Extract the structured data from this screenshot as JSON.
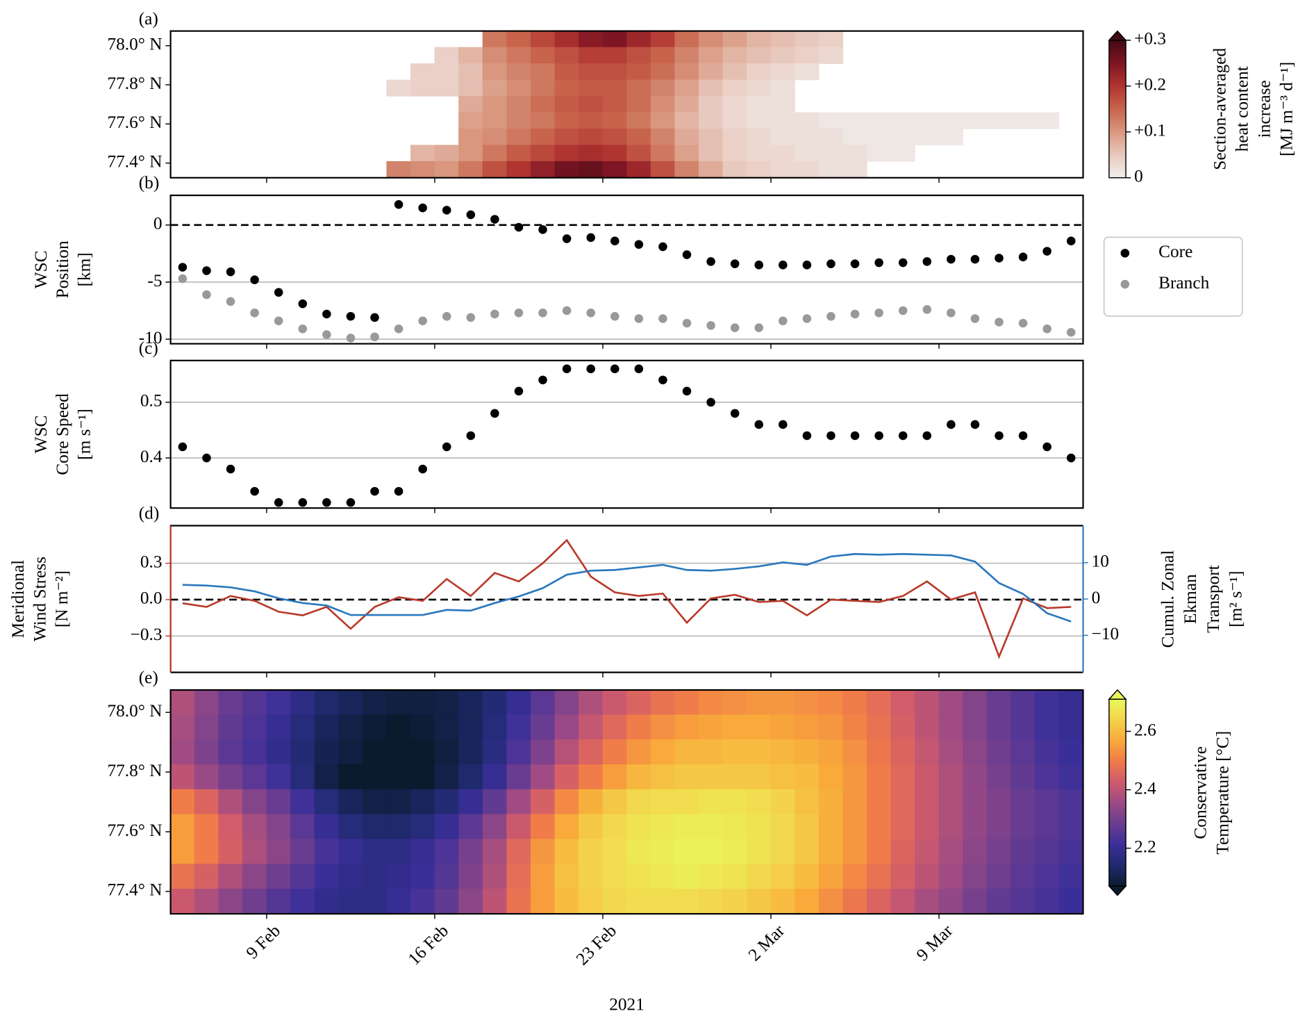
{
  "chart_data": [
    {
      "type": "heatmap",
      "label": "(a)",
      "ylim": [
        77.325,
        78.075
      ],
      "yticks": [
        {
          "value": 78.0,
          "label": "78.0° N"
        },
        {
          "value": 77.8,
          "label": "77.8° N"
        },
        {
          "value": 77.6,
          "label": "77.6° N"
        },
        {
          "value": 77.4,
          "label": "77.4° N"
        }
      ],
      "values": [
        [
          null,
          null,
          null,
          null,
          null,
          null,
          null,
          null,
          null,
          null,
          null,
          null,
          null,
          0.13,
          0.15,
          0.18,
          0.21,
          0.24,
          0.25,
          0.22,
          0.19,
          0.14,
          0.11,
          0.09,
          0.07,
          0.06,
          0.05,
          0.04,
          null,
          null,
          null,
          null,
          null,
          null,
          null,
          null,
          null,
          null
        ],
        [
          null,
          null,
          null,
          null,
          null,
          null,
          null,
          null,
          null,
          null,
          null,
          0.04,
          0.07,
          0.11,
          0.13,
          0.15,
          0.17,
          0.19,
          0.19,
          0.17,
          0.15,
          0.12,
          0.09,
          0.07,
          0.06,
          0.05,
          0.04,
          0.03,
          null,
          null,
          null,
          null,
          null,
          null,
          null,
          null,
          null,
          null
        ],
        [
          null,
          null,
          null,
          null,
          null,
          null,
          null,
          null,
          null,
          null,
          0.04,
          0.04,
          0.06,
          0.1,
          0.12,
          0.13,
          0.16,
          0.17,
          0.17,
          0.16,
          0.14,
          0.11,
          0.08,
          0.06,
          0.04,
          0.03,
          0.02,
          null,
          null,
          null,
          null,
          null,
          null,
          null,
          null,
          null,
          null,
          null
        ],
        [
          null,
          null,
          null,
          null,
          null,
          null,
          null,
          null,
          null,
          0.03,
          0.04,
          0.04,
          0.06,
          0.09,
          0.11,
          0.13,
          0.15,
          0.16,
          0.16,
          0.14,
          0.12,
          0.09,
          0.06,
          0.04,
          0.03,
          0.02,
          null,
          null,
          null,
          null,
          null,
          null,
          null,
          null,
          null,
          null,
          null,
          null
        ],
        [
          null,
          null,
          null,
          null,
          null,
          null,
          null,
          null,
          null,
          null,
          null,
          null,
          0.08,
          0.1,
          0.12,
          0.14,
          0.16,
          0.17,
          0.16,
          0.14,
          0.11,
          0.08,
          0.05,
          0.03,
          0.02,
          0.02,
          null,
          null,
          null,
          null,
          null,
          null,
          null,
          null,
          null,
          null,
          null,
          null
        ],
        [
          null,
          null,
          null,
          null,
          null,
          null,
          null,
          null,
          null,
          null,
          null,
          null,
          0.09,
          0.1,
          0.12,
          0.13,
          0.15,
          0.16,
          0.15,
          0.13,
          0.1,
          0.07,
          0.05,
          0.03,
          0.02,
          0.02,
          0.02,
          0.01,
          0.01,
          0.01,
          0.01,
          0.01,
          0.01,
          0.01,
          0.01,
          0.01,
          0.01,
          null
        ],
        [
          null,
          null,
          null,
          null,
          null,
          null,
          null,
          null,
          null,
          null,
          null,
          null,
          0.1,
          0.11,
          0.13,
          0.15,
          0.17,
          0.18,
          0.17,
          0.15,
          0.12,
          0.08,
          0.06,
          0.04,
          0.03,
          0.02,
          0.02,
          0.02,
          0.01,
          0.01,
          0.01,
          0.01,
          0.01,
          null,
          null,
          null,
          null,
          null
        ],
        [
          null,
          null,
          null,
          null,
          null,
          null,
          null,
          null,
          null,
          null,
          0.07,
          0.08,
          0.1,
          0.13,
          0.16,
          0.18,
          0.2,
          0.21,
          0.2,
          0.17,
          0.13,
          0.09,
          0.06,
          0.04,
          0.03,
          0.03,
          0.02,
          0.02,
          0.02,
          0.01,
          0.01,
          null,
          null,
          null,
          null,
          null,
          null,
          null
        ],
        [
          null,
          null,
          null,
          null,
          null,
          null,
          null,
          null,
          null,
          0.12,
          0.11,
          0.1,
          0.13,
          0.17,
          0.2,
          0.23,
          0.26,
          0.27,
          0.25,
          0.22,
          0.17,
          0.12,
          0.08,
          0.05,
          0.04,
          0.03,
          0.03,
          0.02,
          0.02,
          null,
          null,
          null,
          null,
          null,
          null,
          null,
          null,
          null
        ]
      ],
      "clim": [
        0,
        0.3
      ],
      "colormap": [
        "#f1eeed",
        "#e8c9bd",
        "#d9977f",
        "#c8644c",
        "#b03530",
        "#7e1524",
        "#420a14"
      ],
      "extend": "max",
      "colorbar_ticks": [
        0,
        {
          "value": 0.1,
          "label": "+0.1"
        },
        {
          "value": 0.2,
          "label": "+0.2"
        },
        {
          "value": 0.3,
          "label": "+0.3"
        }
      ],
      "colorbar_label": [
        "Section-averaged",
        "heat content",
        "increase",
        "[MJ m⁻³ d⁻¹]"
      ]
    },
    {
      "type": "scatter",
      "label": "(b)",
      "ylabel": [
        "WSC",
        "Position",
        "[km]"
      ],
      "ylim": [
        -10.4,
        2.6
      ],
      "yticks": [
        0,
        -5,
        -10
      ],
      "grid": true,
      "hline": 0,
      "legend": "outside right",
      "series": [
        {
          "name": "Core",
          "color": "#000000",
          "values": [
            -3.7,
            -4.0,
            -4.1,
            -4.8,
            -5.9,
            -6.9,
            -7.8,
            -8.0,
            -8.1,
            1.8,
            1.5,
            1.3,
            0.9,
            0.5,
            -0.2,
            -0.4,
            -1.2,
            -1.1,
            -1.4,
            -1.7,
            -1.9,
            -2.6,
            -3.2,
            -3.4,
            -3.5,
            -3.5,
            -3.5,
            -3.4,
            -3.4,
            -3.3,
            -3.3,
            -3.2,
            -3.0,
            -3.0,
            -2.9,
            -2.8,
            -2.3,
            -1.4
          ]
        },
        {
          "name": "Branch",
          "color": "#999999",
          "values": [
            -4.7,
            -6.1,
            -6.7,
            -7.7,
            -8.4,
            -9.1,
            -9.6,
            -9.9,
            -9.8,
            -9.1,
            -8.4,
            -8.0,
            -8.1,
            -7.8,
            -7.7,
            -7.7,
            -7.5,
            -7.7,
            -8.0,
            -8.2,
            -8.2,
            -8.6,
            -8.8,
            -9.0,
            -9.0,
            -8.4,
            -8.2,
            -8.0,
            -7.8,
            -7.7,
            -7.5,
            -7.4,
            -7.7,
            -8.2,
            -8.5,
            -8.6,
            -9.1,
            -9.4
          ]
        }
      ]
    },
    {
      "type": "scatter",
      "label": "(c)",
      "ylabel": [
        "WSC",
        "Core Speed",
        "[m s⁻¹]"
      ],
      "ylim": [
        0.31,
        0.575
      ],
      "yticks": [
        0.4,
        0.5
      ],
      "grid": true,
      "series": [
        {
          "color": "#000000",
          "values": [
            0.42,
            0.4,
            0.38,
            0.34,
            0.32,
            0.32,
            0.32,
            0.32,
            0.34,
            0.34,
            0.38,
            0.42,
            0.44,
            0.48,
            0.52,
            0.54,
            0.56,
            0.56,
            0.56,
            0.56,
            0.54,
            0.52,
            0.5,
            0.48,
            0.46,
            0.46,
            0.44,
            0.44,
            0.44,
            0.44,
            0.44,
            0.44,
            0.46,
            0.46,
            0.44,
            0.44,
            0.42,
            0.4
          ]
        }
      ]
    },
    {
      "type": "line",
      "label": "(d)",
      "ylabel": [
        "Meridional",
        "Wind Stress",
        "[N m⁻²]"
      ],
      "y2label": [
        "Cumul. Zonal",
        "Ekman",
        "Transport",
        "[m² s⁻¹]"
      ],
      "ylim": [
        -0.6,
        0.61
      ],
      "yticks": [
        0.3,
        {
          "value": 0,
          "label": "0.0"
        },
        {
          "value": -0.3,
          "label": "−0.3"
        }
      ],
      "y2lim": [
        -20.2,
        20.2
      ],
      "y2ticks": [
        10,
        0,
        {
          "value": -10,
          "label": "−10"
        }
      ],
      "grid": true,
      "hline": 0,
      "series": [
        {
          "color": "#b83a2a",
          "values": [
            -0.03,
            -0.06,
            0.03,
            -0.01,
            -0.1,
            -0.13,
            -0.06,
            -0.24,
            -0.06,
            0.02,
            -0.01,
            0.17,
            0.03,
            0.22,
            0.15,
            0.3,
            0.49,
            0.19,
            0.06,
            0.03,
            0.05,
            -0.19,
            0.01,
            0.04,
            -0.02,
            -0.01,
            -0.13,
            0.0,
            -0.01,
            -0.02,
            0.03,
            0.15,
            0.0,
            0.06,
            -0.47,
            0.01,
            -0.07,
            -0.06
          ]
        },
        {
          "color": "#2a78bd",
          "axis": "y2",
          "values": [
            3.9,
            3.7,
            3.2,
            2.1,
            0.2,
            -1.1,
            -1.8,
            -4.4,
            -4.4,
            -4.4,
            -4.4,
            -3.0,
            -3.2,
            -1.1,
            0.7,
            3.0,
            6.7,
            7.8,
            8.0,
            8.7,
            9.4,
            8.0,
            7.8,
            8.3,
            9.0,
            10.1,
            9.4,
            11.7,
            12.4,
            12.2,
            12.4,
            12.2,
            12.0,
            10.3,
            4.4,
            1.4,
            -3.9,
            -6.2
          ]
        }
      ]
    },
    {
      "type": "heatmap",
      "label": "(e)",
      "categories": [
        null,
        null,
        null,
        null,
        "9 Feb",
        null,
        null,
        null,
        null,
        null,
        null,
        "16 Feb",
        null,
        null,
        null,
        null,
        null,
        null,
        "23 Feb",
        null,
        null,
        null,
        null,
        null,
        null,
        "2 Mar",
        null,
        null,
        null,
        null,
        null,
        null,
        "9 Mar",
        null,
        null,
        null,
        null,
        null
      ],
      "xlabel": "2021",
      "ylim": [
        77.325,
        78.075
      ],
      "yticks": [
        {
          "value": 78.0,
          "label": "78.0° N"
        },
        {
          "value": 77.8,
          "label": "77.8° N"
        },
        {
          "value": 77.6,
          "label": "77.6° N"
        },
        {
          "value": 77.4,
          "label": "77.4° N"
        }
      ],
      "values": [
        [
          2.38,
          2.33,
          2.28,
          2.25,
          2.22,
          2.18,
          2.14,
          2.12,
          2.1,
          2.09,
          2.09,
          2.1,
          2.12,
          2.15,
          2.2,
          2.26,
          2.32,
          2.38,
          2.42,
          2.45,
          2.48,
          2.5,
          2.52,
          2.53,
          2.54,
          2.54,
          2.53,
          2.52,
          2.5,
          2.47,
          2.43,
          2.4,
          2.36,
          2.32,
          2.28,
          2.25,
          2.22,
          2.2
        ],
        [
          2.37,
          2.32,
          2.27,
          2.24,
          2.2,
          2.16,
          2.12,
          2.1,
          2.08,
          2.07,
          2.08,
          2.1,
          2.12,
          2.16,
          2.22,
          2.28,
          2.35,
          2.41,
          2.46,
          2.5,
          2.53,
          2.55,
          2.56,
          2.57,
          2.57,
          2.56,
          2.55,
          2.54,
          2.51,
          2.48,
          2.44,
          2.4,
          2.36,
          2.32,
          2.28,
          2.25,
          2.22,
          2.2
        ],
        [
          2.36,
          2.31,
          2.26,
          2.23,
          2.19,
          2.15,
          2.11,
          2.09,
          2.07,
          2.06,
          2.07,
          2.09,
          2.12,
          2.17,
          2.24,
          2.31,
          2.39,
          2.45,
          2.5,
          2.54,
          2.57,
          2.59,
          2.59,
          2.6,
          2.6,
          2.59,
          2.58,
          2.56,
          2.53,
          2.49,
          2.45,
          2.41,
          2.37,
          2.33,
          2.29,
          2.26,
          2.23,
          2.21
        ],
        [
          2.4,
          2.35,
          2.3,
          2.26,
          2.22,
          2.16,
          2.1,
          2.07,
          2.05,
          2.05,
          2.07,
          2.1,
          2.14,
          2.2,
          2.28,
          2.36,
          2.44,
          2.5,
          2.55,
          2.59,
          2.61,
          2.62,
          2.62,
          2.62,
          2.62,
          2.61,
          2.6,
          2.57,
          2.54,
          2.5,
          2.46,
          2.42,
          2.38,
          2.34,
          2.3,
          2.27,
          2.24,
          2.22
        ],
        [
          2.5,
          2.45,
          2.38,
          2.32,
          2.28,
          2.22,
          2.16,
          2.12,
          2.1,
          2.1,
          2.12,
          2.15,
          2.2,
          2.27,
          2.36,
          2.44,
          2.52,
          2.58,
          2.62,
          2.65,
          2.66,
          2.66,
          2.67,
          2.67,
          2.66,
          2.64,
          2.61,
          2.58,
          2.54,
          2.5,
          2.46,
          2.42,
          2.38,
          2.34,
          2.31,
          2.28,
          2.26,
          2.24
        ],
        [
          2.55,
          2.5,
          2.43,
          2.37,
          2.32,
          2.26,
          2.2,
          2.16,
          2.14,
          2.14,
          2.16,
          2.2,
          2.26,
          2.33,
          2.42,
          2.5,
          2.57,
          2.62,
          2.65,
          2.67,
          2.68,
          2.69,
          2.69,
          2.68,
          2.67,
          2.65,
          2.62,
          2.58,
          2.54,
          2.5,
          2.46,
          2.42,
          2.38,
          2.34,
          2.31,
          2.28,
          2.26,
          2.24
        ],
        [
          2.55,
          2.5,
          2.44,
          2.38,
          2.33,
          2.28,
          2.23,
          2.2,
          2.18,
          2.18,
          2.2,
          2.24,
          2.3,
          2.37,
          2.46,
          2.54,
          2.6,
          2.64,
          2.66,
          2.68,
          2.69,
          2.7,
          2.7,
          2.69,
          2.67,
          2.65,
          2.62,
          2.58,
          2.54,
          2.5,
          2.45,
          2.41,
          2.37,
          2.33,
          2.3,
          2.27,
          2.25,
          2.23
        ],
        [
          2.48,
          2.44,
          2.38,
          2.33,
          2.29,
          2.25,
          2.21,
          2.19,
          2.18,
          2.19,
          2.21,
          2.25,
          2.31,
          2.38,
          2.47,
          2.55,
          2.61,
          2.64,
          2.66,
          2.67,
          2.68,
          2.69,
          2.68,
          2.67,
          2.65,
          2.63,
          2.6,
          2.56,
          2.52,
          2.48,
          2.44,
          2.4,
          2.36,
          2.32,
          2.29,
          2.26,
          2.24,
          2.22
        ],
        [
          2.42,
          2.38,
          2.33,
          2.29,
          2.25,
          2.22,
          2.19,
          2.18,
          2.18,
          2.2,
          2.23,
          2.27,
          2.33,
          2.4,
          2.48,
          2.55,
          2.6,
          2.63,
          2.65,
          2.66,
          2.66,
          2.66,
          2.65,
          2.64,
          2.62,
          2.6,
          2.57,
          2.53,
          2.49,
          2.45,
          2.41,
          2.37,
          2.34,
          2.3,
          2.27,
          2.25,
          2.23,
          2.21
        ]
      ],
      "clim": [
        2.07,
        2.71
      ],
      "colormap": [
        "#0b1b2e",
        "#1f2a6e",
        "#3b2f9a",
        "#6a3d8f",
        "#9c4a85",
        "#cf5a6c",
        "#f07a4a",
        "#f9a93a",
        "#f4d24a",
        "#e9f85a"
      ],
      "extend": "both",
      "colorbar_ticks": [
        2.2,
        2.4,
        2.6
      ],
      "colorbar_label": [
        "Conservative",
        "Temperature [°C]"
      ]
    }
  ]
}
